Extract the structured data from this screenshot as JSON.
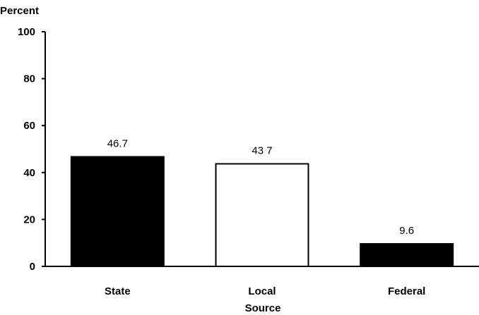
{
  "chart_data": {
    "type": "bar",
    "categories": [
      "State",
      "Local",
      "Federal"
    ],
    "values": [
      46.7,
      43.7,
      9.6
    ],
    "value_labels": [
      "46.7",
      "43 7",
      "9.6"
    ],
    "bar_fills": [
      "#000000",
      "#ffffff",
      "#000000"
    ],
    "ylabel": "Percent",
    "xlabel": "Source",
    "ylim": [
      0,
      100
    ],
    "yticks": [
      0,
      20,
      40,
      60,
      80,
      100
    ],
    "grid": false
  }
}
